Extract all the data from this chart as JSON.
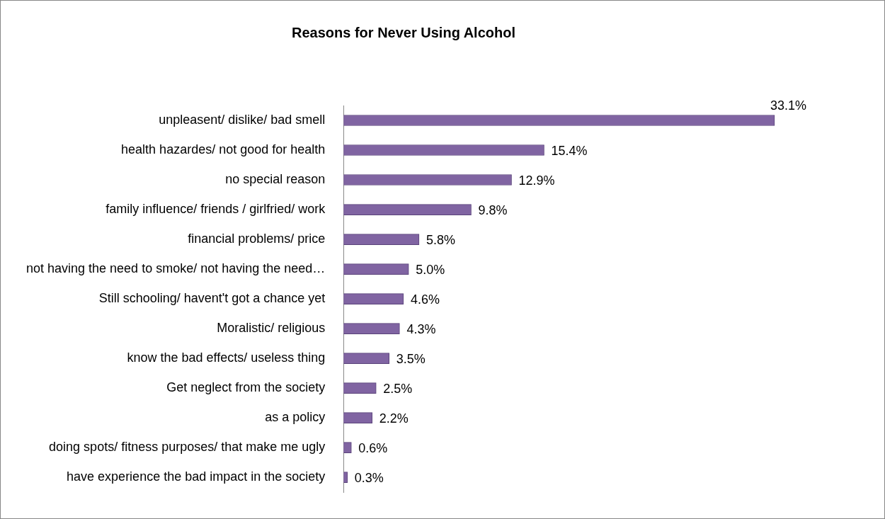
{
  "chart_data": {
    "type": "bar",
    "orientation": "horizontal",
    "title": "Reasons for Never Using Alcohol",
    "categories": [
      "unpleasent/ dislike/ bad smell",
      "health hazardes/ not good for health",
      "no special reason",
      "family influence/ friends / girlfried/ work",
      "financial problems/ price",
      "not having the need to smoke/ not having the need…",
      "Still schooling/ havent't got a chance yet",
      "Moralistic/ religious",
      "know the bad effects/ useless thing",
      "Get neglect from the society",
      "as a policy",
      "doing spots/ fitness purposes/ that make me ugly",
      "have experience the bad impact in the society"
    ],
    "values": [
      33.1,
      15.4,
      12.9,
      9.8,
      5.8,
      5.0,
      4.6,
      4.3,
      3.5,
      2.5,
      2.2,
      0.6,
      0.3
    ],
    "value_labels": [
      "33.1%",
      "15.4%",
      "12.9%",
      "9.8%",
      "5.8%",
      "5.0%",
      "4.6%",
      "4.3%",
      "3.5%",
      "2.5%",
      "2.2%",
      "0.6%",
      "0.3%"
    ],
    "color": "#8064a2",
    "tick_labels": "y",
    "grid": false,
    "legend": false
  }
}
